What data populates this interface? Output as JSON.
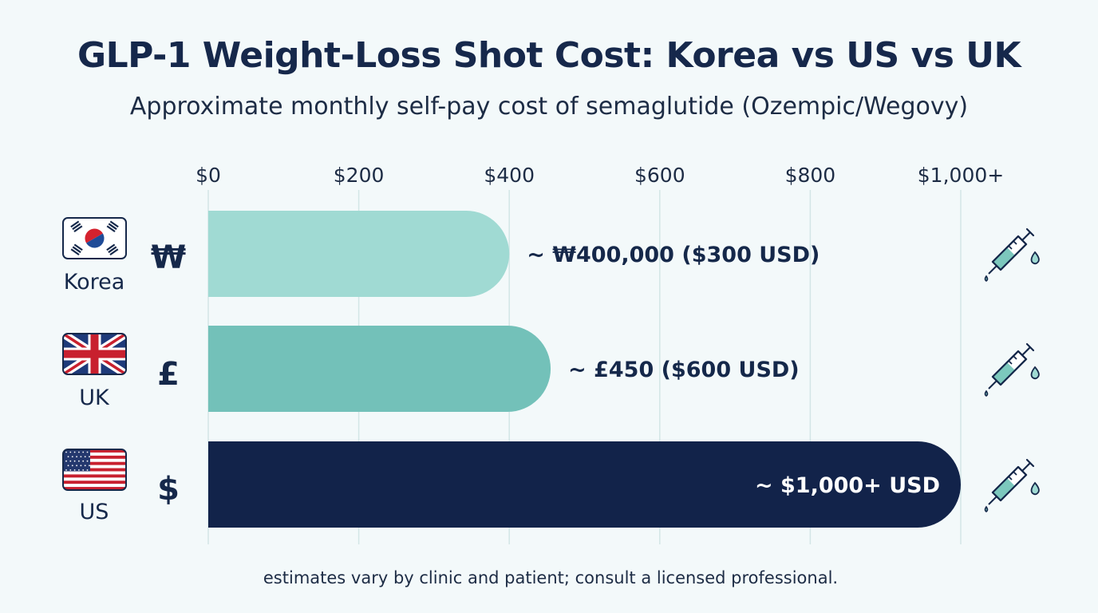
{
  "chart_data": {
    "type": "bar",
    "orientation": "horizontal",
    "title": "GLP-1 Weight-Loss Shot Cost: Korea vs US vs UK",
    "subtitle": "Approximate monthly self-pay cost of semaglutide (Ozempic/Wegovy)",
    "categories": [
      "Korea",
      "UK",
      "US"
    ],
    "currency_symbols": [
      "₩",
      "£",
      "$"
    ],
    "values": [
      400,
      455,
      1000
    ],
    "value_labels": [
      "~ ₩400,000 ($300 USD)",
      "~ £450 ($600 USD)",
      "~ $1,000+ USD"
    ],
    "bar_colors": [
      "#a0dad3",
      "#73c1b9",
      "#12234a"
    ],
    "value_label_colors": [
      "#15284a",
      "#15284a",
      "#ffffff"
    ],
    "x_ticks": [
      0,
      200,
      400,
      600,
      800,
      1000
    ],
    "x_tick_labels": [
      "$0",
      "$200",
      "$400",
      "$600",
      "$800",
      "$1,000+"
    ],
    "xlim": [
      0,
      1000
    ],
    "grid": true,
    "axis_position": "top",
    "row_icon": "syringe-icon",
    "flag_icons": [
      "korea-flag-icon",
      "uk-flag-icon",
      "us-flag-icon"
    ]
  },
  "footnote": "estimates vary by clinic and patient; consult a licensed professional."
}
